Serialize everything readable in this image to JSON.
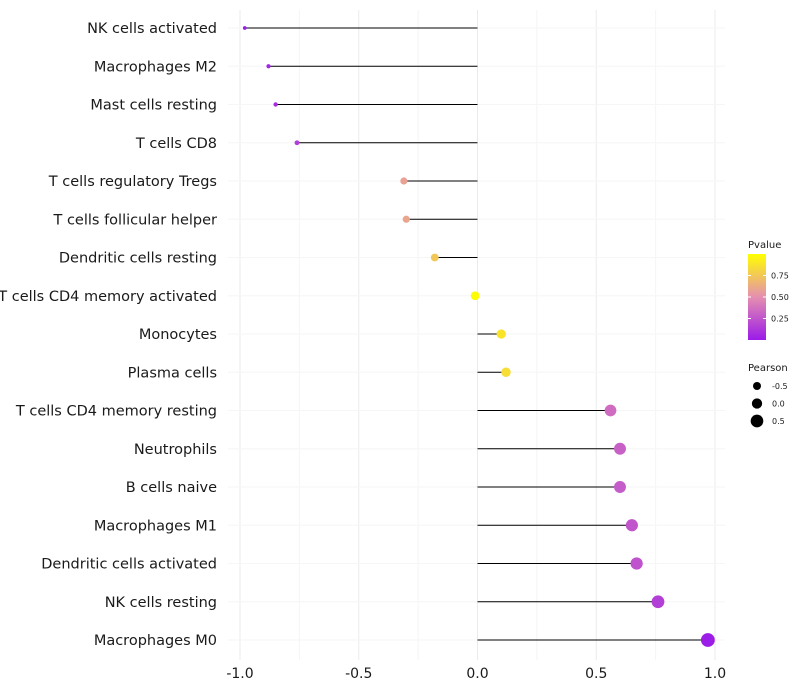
{
  "chart_data": {
    "type": "lollipop",
    "title": "",
    "xlabel": "",
    "ylabel": "",
    "xlim": [
      -1.0,
      1.0
    ],
    "x_ticks": [
      "-1.0",
      "-0.5",
      "0.0",
      "0.5",
      "1.0"
    ],
    "x_tick_values": [
      -1.0,
      -0.5,
      0.0,
      0.5,
      1.0
    ],
    "categories": [
      "NK cells activated",
      "Macrophages M2",
      "Mast cells resting",
      "T cells CD8",
      "T cells regulatory  Tregs",
      "T cells follicular helper",
      "Dendritic cells resting",
      "T cells CD4 memory activated",
      "Monocytes",
      "Plasma cells",
      "T cells CD4 memory resting",
      "Neutrophils",
      "B cells naive",
      "Macrophages M1",
      "Dendritic cells activated",
      "NK cells resting",
      "Macrophages M0"
    ],
    "pearson": [
      -0.98,
      -0.88,
      -0.85,
      -0.76,
      -0.31,
      -0.3,
      -0.18,
      -0.01,
      0.1,
      0.12,
      0.56,
      0.6,
      0.6,
      0.65,
      0.67,
      0.76,
      0.97
    ],
    "pvalue": [
      0.01,
      0.05,
      0.08,
      0.15,
      0.58,
      0.6,
      0.75,
      0.98,
      0.88,
      0.85,
      0.35,
      0.3,
      0.28,
      0.25,
      0.24,
      0.16,
      0.01
    ],
    "legend": {
      "pvalue_title": "Pvalue",
      "pvalue_ticks": [
        "0.75",
        "0.50",
        "0.25"
      ],
      "pvalue_tick_values": [
        0.75,
        0.5,
        0.25
      ],
      "pvalue_range": [
        0.0,
        1.0
      ],
      "pearson_title": "Pearson",
      "pearson_ticks": [
        "-0.5",
        "0.0",
        "0.5"
      ],
      "pearson_tick_values": [
        -0.5,
        0.0,
        0.5
      ],
      "position": "right"
    },
    "colors": {
      "low": "#9b1be8",
      "mid": "#e58fb0",
      "high": "#ffff00",
      "stem": "#000000",
      "grid": "#ebebeb"
    }
  }
}
